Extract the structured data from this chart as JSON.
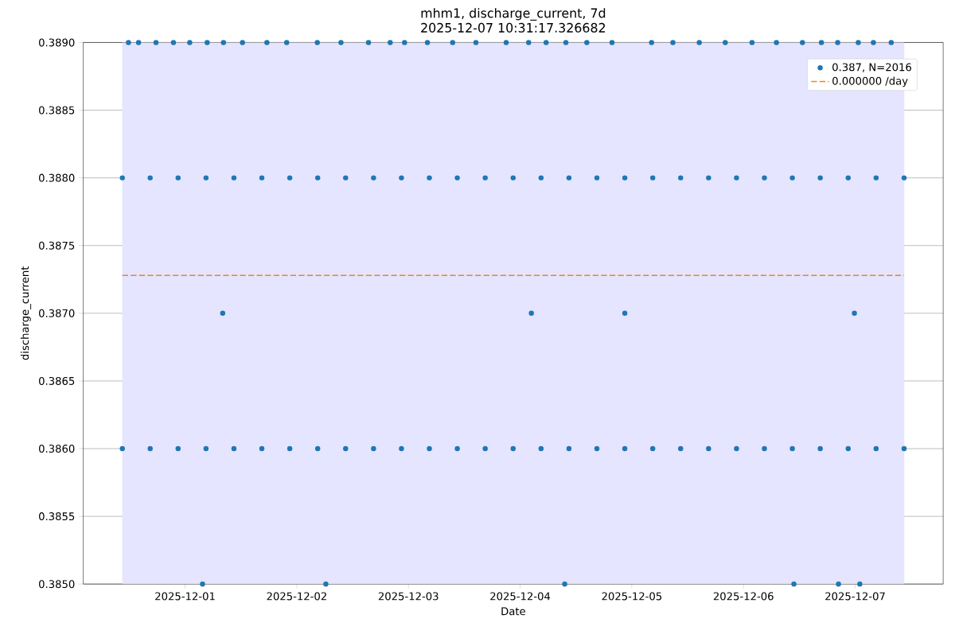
{
  "chart_data": {
    "type": "scatter",
    "title": "mhm1, discharge_current, 7d",
    "subtitle": "2025-12-07 10:31:17.326682",
    "xlabel": "Date",
    "ylabel": "discharge_current",
    "xlim": [
      "2025-11-30T02:07",
      "2025-12-07T18:55"
    ],
    "ylim": [
      0.385,
      0.389
    ],
    "xticks": [
      "2025-12-01",
      "2025-12-02",
      "2025-12-03",
      "2025-12-04",
      "2025-12-05",
      "2025-12-06",
      "2025-12-07"
    ],
    "yticks": [
      {
        "value": 0.385,
        "label": "0.3850"
      },
      {
        "value": 0.3855,
        "label": "0.3855"
      },
      {
        "value": 0.386,
        "label": "0.3860"
      },
      {
        "value": 0.3865,
        "label": "0.3865"
      },
      {
        "value": 0.387,
        "label": "0.3870"
      },
      {
        "value": 0.3875,
        "label": "0.3875"
      },
      {
        "value": 0.388,
        "label": "0.3880"
      },
      {
        "value": 0.3885,
        "label": "0.3885"
      },
      {
        "value": 0.389,
        "label": "0.3890"
      }
    ],
    "grid": true,
    "legend": "top right",
    "bands": [
      {
        "axis": "x",
        "from": "2025-11-30T10:31",
        "to": "2025-12-07T10:31",
        "color": "#e5e5ff"
      }
    ],
    "series": [
      {
        "name": "0.387, N=2016",
        "type": "scatter",
        "marker": "circle",
        "color": "#1f77b4",
        "x": [
          "2025-11-30T11:50",
          "2025-11-30T14:00",
          "2025-11-30T17:45",
          "2025-11-30T21:30",
          "2025-12-01T01:00",
          "2025-12-01T04:45",
          "2025-12-01T08:15",
          "2025-12-01T12:20",
          "2025-12-01T17:35",
          "2025-12-01T21:50",
          "2025-12-02T04:25",
          "2025-12-02T09:30",
          "2025-12-02T15:25",
          "2025-12-02T20:05",
          "2025-12-02T23:10",
          "2025-12-03T04:05",
          "2025-12-03T09:30",
          "2025-12-03T14:30",
          "2025-12-03T21:00",
          "2025-12-04T01:50",
          "2025-12-04T05:35",
          "2025-12-04T09:50",
          "2025-12-04T14:20",
          "2025-12-04T19:45",
          "2025-12-05T04:15",
          "2025-12-05T08:50",
          "2025-12-05T14:30",
          "2025-12-05T20:05",
          "2025-12-06T01:50",
          "2025-12-06T07:05",
          "2025-12-06T12:40",
          "2025-12-06T16:45",
          "2025-12-06T20:15",
          "2025-12-07T00:40",
          "2025-12-07T03:55",
          "2025-12-07T07:45",
          "2025-12-01T03:45",
          "2025-12-02T06:15",
          "2025-12-04T09:35",
          "2025-12-06T10:50",
          "2025-12-06T20:25",
          "2025-12-07T01:00",
          "2025-12-01T08:05",
          "2025-12-04T02:25",
          "2025-12-04T22:30",
          "2025-12-06T23:50",
          "2025-11-30T10:31",
          "2025-11-30T16:30",
          "2025-11-30T22:30",
          "2025-12-01T04:30",
          "2025-12-01T10:30",
          "2025-12-01T16:30",
          "2025-12-01T22:30",
          "2025-12-02T04:30",
          "2025-12-02T10:30",
          "2025-12-02T16:30",
          "2025-12-02T22:30",
          "2025-12-03T04:30",
          "2025-12-03T10:30",
          "2025-12-03T16:30",
          "2025-12-03T22:30",
          "2025-12-04T04:30",
          "2025-12-04T10:30",
          "2025-12-04T16:30",
          "2025-12-04T22:30",
          "2025-12-05T04:30",
          "2025-12-05T10:30",
          "2025-12-05T16:30",
          "2025-12-05T22:30",
          "2025-12-06T04:30",
          "2025-12-06T10:30",
          "2025-12-06T16:30",
          "2025-12-06T22:30",
          "2025-12-07T04:30",
          "2025-12-07T10:31",
          "2025-11-30T10:31",
          "2025-11-30T16:30",
          "2025-11-30T22:30",
          "2025-12-01T04:30",
          "2025-12-01T10:30",
          "2025-12-01T16:30",
          "2025-12-01T22:30",
          "2025-12-02T04:30",
          "2025-12-02T10:30",
          "2025-12-02T16:30",
          "2025-12-02T22:30",
          "2025-12-03T04:30",
          "2025-12-03T10:30",
          "2025-12-03T16:30",
          "2025-12-03T22:30",
          "2025-12-04T04:30",
          "2025-12-04T10:30",
          "2025-12-04T16:30",
          "2025-12-04T22:30",
          "2025-12-05T04:30",
          "2025-12-05T10:30",
          "2025-12-05T16:30",
          "2025-12-05T22:30",
          "2025-12-06T04:30",
          "2025-12-06T10:30",
          "2025-12-06T16:30",
          "2025-12-06T22:30",
          "2025-12-07T04:30",
          "2025-12-07T10:31"
        ],
        "values": [
          0.389,
          0.389,
          0.389,
          0.389,
          0.389,
          0.389,
          0.389,
          0.389,
          0.389,
          0.389,
          0.389,
          0.389,
          0.389,
          0.389,
          0.389,
          0.389,
          0.389,
          0.389,
          0.389,
          0.389,
          0.389,
          0.389,
          0.389,
          0.389,
          0.389,
          0.389,
          0.389,
          0.389,
          0.389,
          0.389,
          0.389,
          0.389,
          0.389,
          0.389,
          0.389,
          0.389,
          0.385,
          0.385,
          0.385,
          0.385,
          0.385,
          0.385,
          0.387,
          0.387,
          0.387,
          0.387,
          0.388,
          0.388,
          0.388,
          0.388,
          0.388,
          0.388,
          0.388,
          0.388,
          0.388,
          0.388,
          0.388,
          0.388,
          0.388,
          0.388,
          0.388,
          0.388,
          0.388,
          0.388,
          0.388,
          0.388,
          0.388,
          0.388,
          0.388,
          0.388,
          0.388,
          0.388,
          0.388,
          0.388,
          0.388,
          0.386,
          0.386,
          0.386,
          0.386,
          0.386,
          0.386,
          0.386,
          0.386,
          0.386,
          0.386,
          0.386,
          0.386,
          0.386,
          0.386,
          0.386,
          0.386,
          0.386,
          0.386,
          0.386,
          0.386,
          0.386,
          0.386,
          0.386,
          0.386,
          0.386,
          0.386,
          0.386,
          0.386,
          0.386
        ]
      },
      {
        "name": "0.000000 /day",
        "type": "line",
        "color": "#ff7f0e",
        "line_style": "dashed",
        "marker": "none",
        "x": [
          "2025-11-30T10:31",
          "2025-12-07T10:31"
        ],
        "values": [
          0.38728,
          0.38728
        ]
      }
    ]
  }
}
